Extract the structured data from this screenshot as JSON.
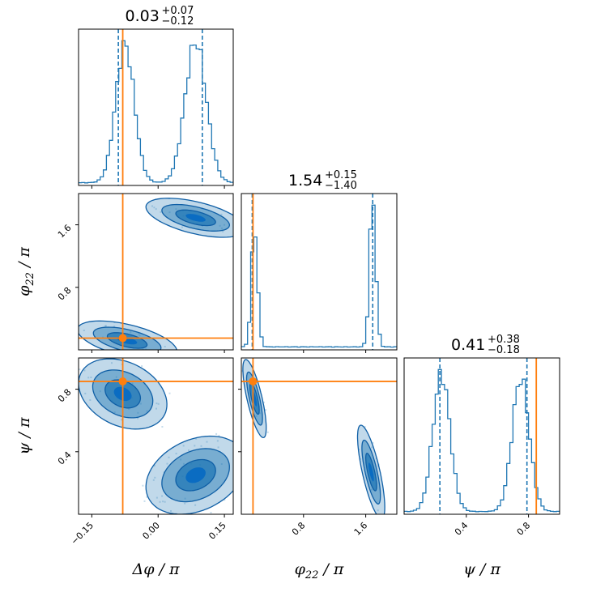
{
  "chart_data": {
    "type": "corner",
    "colors": {
      "samples": "#1f77b4",
      "truth": "#ff7f0e"
    },
    "parameters": [
      {
        "key": "dphi",
        "label_main": "Δφ / π",
        "title": {
          "value": "0.03",
          "upper": "+0.07",
          "lower": "−0.12"
        },
        "range": [
          -0.18,
          0.17
        ],
        "ticks": [
          -0.15,
          0.0,
          0.15
        ],
        "tick_labels": [
          "−0.15",
          "0.00",
          "0.15"
        ],
        "quantiles": [
          -0.09,
          0.1
        ],
        "truth": -0.08,
        "modes": [
          {
            "mu": -0.075,
            "sigma": 0.021,
            "weight": 1.0
          },
          {
            "mu": 0.085,
            "sigma": 0.024,
            "weight": 1.02
          }
        ]
      },
      {
        "key": "phi22",
        "label_base": "φ",
        "label_sub": "22",
        "label_rest": " / π",
        "title": {
          "value": "1.54",
          "upper": "+0.15",
          "lower": "−1.40"
        },
        "range": [
          0.0,
          2.0
        ],
        "ticks": [
          0.8,
          1.6
        ],
        "tick_labels": [
          "0.8",
          "1.6"
        ],
        "quantiles": [
          0.14,
          1.69
        ],
        "truth": 0.15,
        "modes": [
          {
            "mu": 0.17,
            "sigma": 0.04,
            "weight": 0.8
          },
          {
            "mu": 1.69,
            "sigma": 0.04,
            "weight": 1.0
          }
        ]
      },
      {
        "key": "psi",
        "label_main": "ψ / π",
        "title": {
          "value": "0.41",
          "upper": "+0.38",
          "lower": "−0.18"
        },
        "range": [
          0.0,
          1.0
        ],
        "ticks": [
          0.4,
          0.8
        ],
        "tick_labels": [
          "0.4",
          "0.8"
        ],
        "quantiles": [
          0.23,
          0.79
        ],
        "truth": 0.85,
        "modes": [
          {
            "mu": 0.24,
            "sigma": 0.055,
            "weight": 1.0
          },
          {
            "mu": 0.75,
            "sigma": 0.055,
            "weight": 0.97
          }
        ]
      }
    ],
    "joint_modes": [
      {
        "pair": [
          "dphi",
          "phi22"
        ],
        "modes": [
          {
            "mx": -0.07,
            "my": 0.12,
            "sx": 0.045,
            "sy": 0.1,
            "rho": -0.55,
            "w": 1.0
          },
          {
            "mx": 0.085,
            "my": 1.69,
            "sx": 0.045,
            "sy": 0.1,
            "rho": -0.55,
            "w": 1.0
          }
        ]
      },
      {
        "pair": [
          "dphi",
          "psi"
        ],
        "modes": [
          {
            "mx": -0.08,
            "my": 0.77,
            "sx": 0.04,
            "sy": 0.09,
            "rho": -0.3,
            "w": 1.0
          },
          {
            "mx": 0.085,
            "my": 0.25,
            "sx": 0.045,
            "sy": 0.1,
            "rho": 0.3,
            "w": 1.0
          }
        ]
      },
      {
        "pair": [
          "phi22",
          "psi"
        ],
        "modes": [
          {
            "mx": 0.17,
            "my": 0.74,
            "sx": 0.06,
            "sy": 0.1,
            "rho": -0.75,
            "w": 1.0
          },
          {
            "mx": 1.67,
            "my": 0.27,
            "sx": 0.07,
            "sy": 0.12,
            "rho": -0.75,
            "w": 1.0
          }
        ]
      }
    ]
  }
}
